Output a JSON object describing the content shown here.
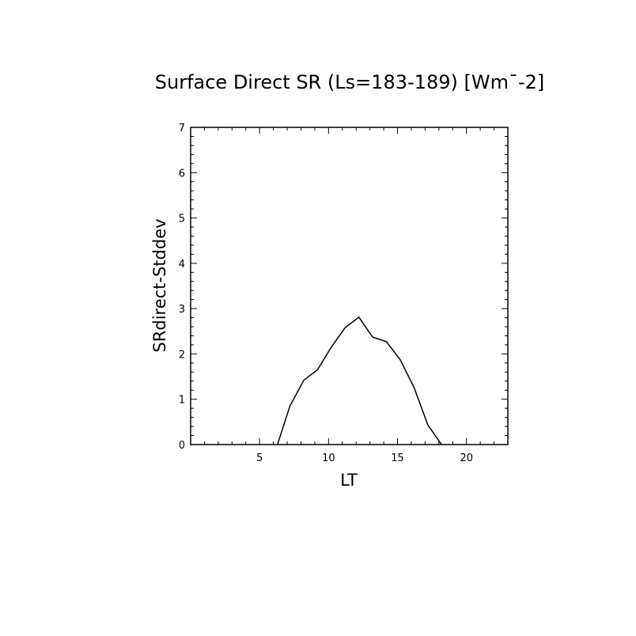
{
  "chart_data": {
    "type": "line",
    "title": "Surface Direct SR (Ls=183-189) [Wm¯-2]",
    "xlabel": "LT",
    "ylabel": "SRdirect-Stddev",
    "xlim": [
      0,
      23
    ],
    "ylim": [
      0,
      7
    ],
    "x_ticks": [
      5,
      10,
      15,
      20
    ],
    "y_ticks": [
      0,
      1,
      2,
      3,
      4,
      5,
      6,
      7
    ],
    "grid": false,
    "legend": "none",
    "series": [
      {
        "x": [
          6.3,
          7.2,
          8.2,
          9.2,
          10.2,
          11.2,
          12.2,
          13.2,
          14.2,
          15.2,
          16.2,
          17.2,
          18.2
        ],
        "values": [
          0.0,
          0.85,
          1.42,
          1.65,
          2.15,
          2.58,
          2.81,
          2.37,
          2.27,
          1.87,
          1.26,
          0.43,
          0.0
        ]
      }
    ],
    "color": "#000000"
  }
}
